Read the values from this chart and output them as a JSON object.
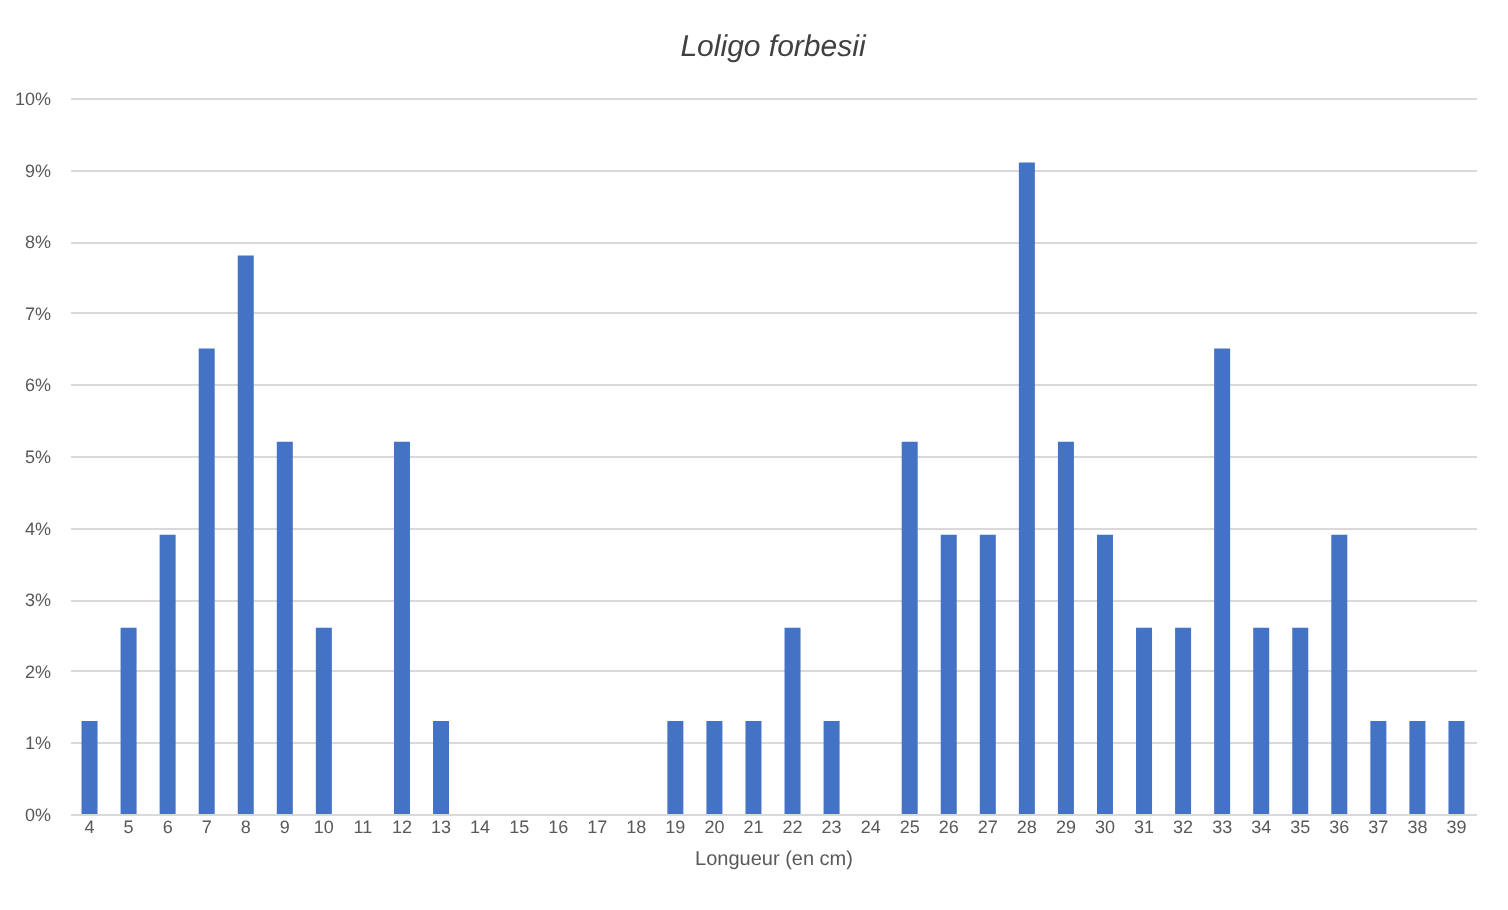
{
  "chart_data": {
    "type": "bar",
    "title": "Loligo forbesii",
    "xlabel": "Longueur (en cm)",
    "categories": [
      "4",
      "5",
      "6",
      "7",
      "8",
      "9",
      "10",
      "11",
      "12",
      "13",
      "14",
      "15",
      "16",
      "17",
      "18",
      "19",
      "20",
      "21",
      "22",
      "23",
      "24",
      "25",
      "26",
      "27",
      "28",
      "29",
      "30",
      "31",
      "32",
      "33",
      "34",
      "35",
      "36",
      "37",
      "38",
      "39"
    ],
    "values": [
      1.3,
      2.6,
      3.9,
      6.5,
      7.8,
      5.2,
      2.6,
      0,
      5.2,
      1.3,
      0,
      0,
      0,
      0,
      0,
      1.3,
      1.3,
      1.3,
      2.6,
      1.3,
      0,
      5.2,
      3.9,
      3.9,
      9.1,
      5.2,
      3.9,
      2.6,
      2.6,
      6.5,
      2.6,
      2.6,
      3.9,
      1.3,
      1.3,
      1.3
    ],
    "color": "#4472c4",
    "ylim": [
      0,
      10
    ],
    "yticks": [
      {
        "value": 0,
        "label": "0%"
      },
      {
        "value": 1,
        "label": "1%"
      },
      {
        "value": 2,
        "label": "2%"
      },
      {
        "value": 3,
        "label": "3%"
      },
      {
        "value": 4,
        "label": "4%"
      },
      {
        "value": 5,
        "label": "5%"
      },
      {
        "value": 6,
        "label": "6%"
      },
      {
        "value": 7,
        "label": "7%"
      },
      {
        "value": 8,
        "label": "8%"
      },
      {
        "value": 9,
        "label": "9%"
      },
      {
        "value": 10,
        "label": "10%"
      }
    ],
    "grid": "y"
  }
}
